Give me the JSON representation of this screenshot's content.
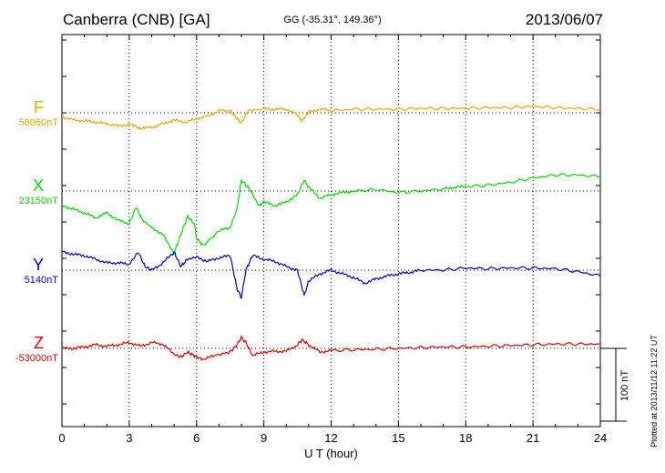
{
  "header": {
    "station": "Canberra (CNB)  [GA]",
    "coords": "GG (-35.31°, 149.36°)",
    "date": "2013/06/07"
  },
  "footer": {
    "plotted": "Plotted at 2013/11/12 11:22 UT"
  },
  "chart_data": {
    "type": "line",
    "xlabel": "U T (hour)",
    "xlim": [
      0,
      24
    ],
    "xticks": [
      0,
      3,
      6,
      9,
      12,
      15,
      18,
      21,
      24
    ],
    "grid": true,
    "scale_bar": {
      "label": "100 nT",
      "value_nT": 100
    },
    "series": [
      {
        "name": "F",
        "baseline_label": "58060nT",
        "baseline_nT": 58060,
        "color": "#f0a800",
        "x": [
          0,
          0.5,
          1,
          1.5,
          2,
          2.5,
          3,
          3.5,
          4,
          4.5,
          5,
          5.5,
          6,
          6.5,
          7,
          7.5,
          7.8,
          8,
          8.3,
          9,
          9.5,
          10,
          10.5,
          10.7,
          11,
          11.5,
          12,
          13,
          14,
          15,
          16,
          17,
          18,
          19,
          20,
          21,
          22,
          23,
          24
        ],
        "y": [
          -5,
          -10,
          -11,
          -13,
          -15,
          -18,
          -16,
          -21,
          -20,
          -15,
          -10,
          -13,
          -8,
          -5,
          3,
          3,
          -8,
          -14,
          3,
          5,
          5,
          5,
          -3,
          -11,
          1,
          5,
          3,
          5,
          5,
          5,
          6,
          6,
          6,
          7,
          7,
          9,
          7,
          6,
          5
        ]
      },
      {
        "name": "X",
        "baseline_label": "23150nT",
        "baseline_nT": 23150,
        "color": "#00e000",
        "x": [
          0,
          0.5,
          1,
          1.5,
          2,
          2.5,
          3,
          3.3,
          3.6,
          4,
          4.5,
          5,
          5.3,
          5.6,
          5.9,
          6,
          6.3,
          7,
          7.5,
          7.8,
          8,
          8.3,
          8.8,
          9,
          9.5,
          10,
          10.5,
          10.8,
          11,
          11.5,
          12,
          12.5,
          13,
          14,
          15,
          16,
          17,
          17.5,
          18,
          19,
          20,
          21,
          22,
          23,
          24
        ],
        "y": [
          -20,
          -25,
          -30,
          -37,
          -30,
          -40,
          -45,
          -22,
          -40,
          -50,
          -60,
          -85,
          -60,
          -35,
          -45,
          -65,
          -75,
          -55,
          -50,
          -25,
          15,
          5,
          -20,
          -15,
          -20,
          -15,
          -5,
          15,
          5,
          -10,
          -5,
          -2,
          0,
          2,
          -2,
          0,
          3,
          5,
          6,
          8,
          12,
          18,
          22,
          22,
          20
        ]
      },
      {
        "name": "Y",
        "baseline_label": "5140nT",
        "baseline_nT": 5140,
        "color": "#0000d0",
        "x": [
          0,
          0.5,
          1,
          1.5,
          2,
          2.5,
          3,
          3.4,
          3.7,
          4,
          4.5,
          5,
          5.3,
          5.6,
          6,
          6.5,
          7,
          7.5,
          7.8,
          8,
          8.2,
          8.5,
          9,
          9.5,
          10,
          10.5,
          10.8,
          11,
          11.5,
          12,
          12.5,
          13,
          13.5,
          14,
          14.5,
          15,
          15.5,
          16,
          17,
          18,
          19,
          20,
          21,
          22,
          23,
          24
        ],
        "y": [
          25,
          22,
          20,
          15,
          10,
          10,
          8,
          25,
          5,
          0,
          10,
          25,
          5,
          15,
          18,
          12,
          17,
          20,
          -25,
          -38,
          0,
          20,
          15,
          12,
          5,
          0,
          -35,
          -15,
          -5,
          0,
          -5,
          -10,
          -18,
          -12,
          -8,
          -5,
          -3,
          0,
          0,
          3,
          2,
          3,
          3,
          2,
          -2,
          -8
        ]
      },
      {
        "name": "Z",
        "baseline_label": "-53000nT",
        "baseline_nT": -53000,
        "color": "#e00000",
        "x": [
          0,
          0.5,
          1,
          1.5,
          2,
          2.5,
          3,
          3.5,
          4,
          4.5,
          5,
          5.3,
          5.6,
          5.9,
          6,
          6.3,
          6.8,
          7.5,
          7.8,
          8,
          8.2,
          8.5,
          9,
          9.5,
          10,
          10.5,
          10.7,
          11,
          11.5,
          12,
          13,
          14,
          15,
          16,
          17,
          18,
          19,
          20,
          21,
          22,
          23,
          24
        ],
        "y": [
          0,
          0,
          2,
          5,
          3,
          5,
          8,
          3,
          8,
          6,
          -8,
          -12,
          -5,
          -10,
          -12,
          -15,
          -10,
          -5,
          5,
          15,
          8,
          -10,
          -5,
          -4,
          -4,
          5,
          12,
          5,
          -5,
          -3,
          -2,
          -1,
          0,
          1,
          2,
          2,
          3,
          4,
          5,
          6,
          6,
          6
        ]
      }
    ]
  }
}
